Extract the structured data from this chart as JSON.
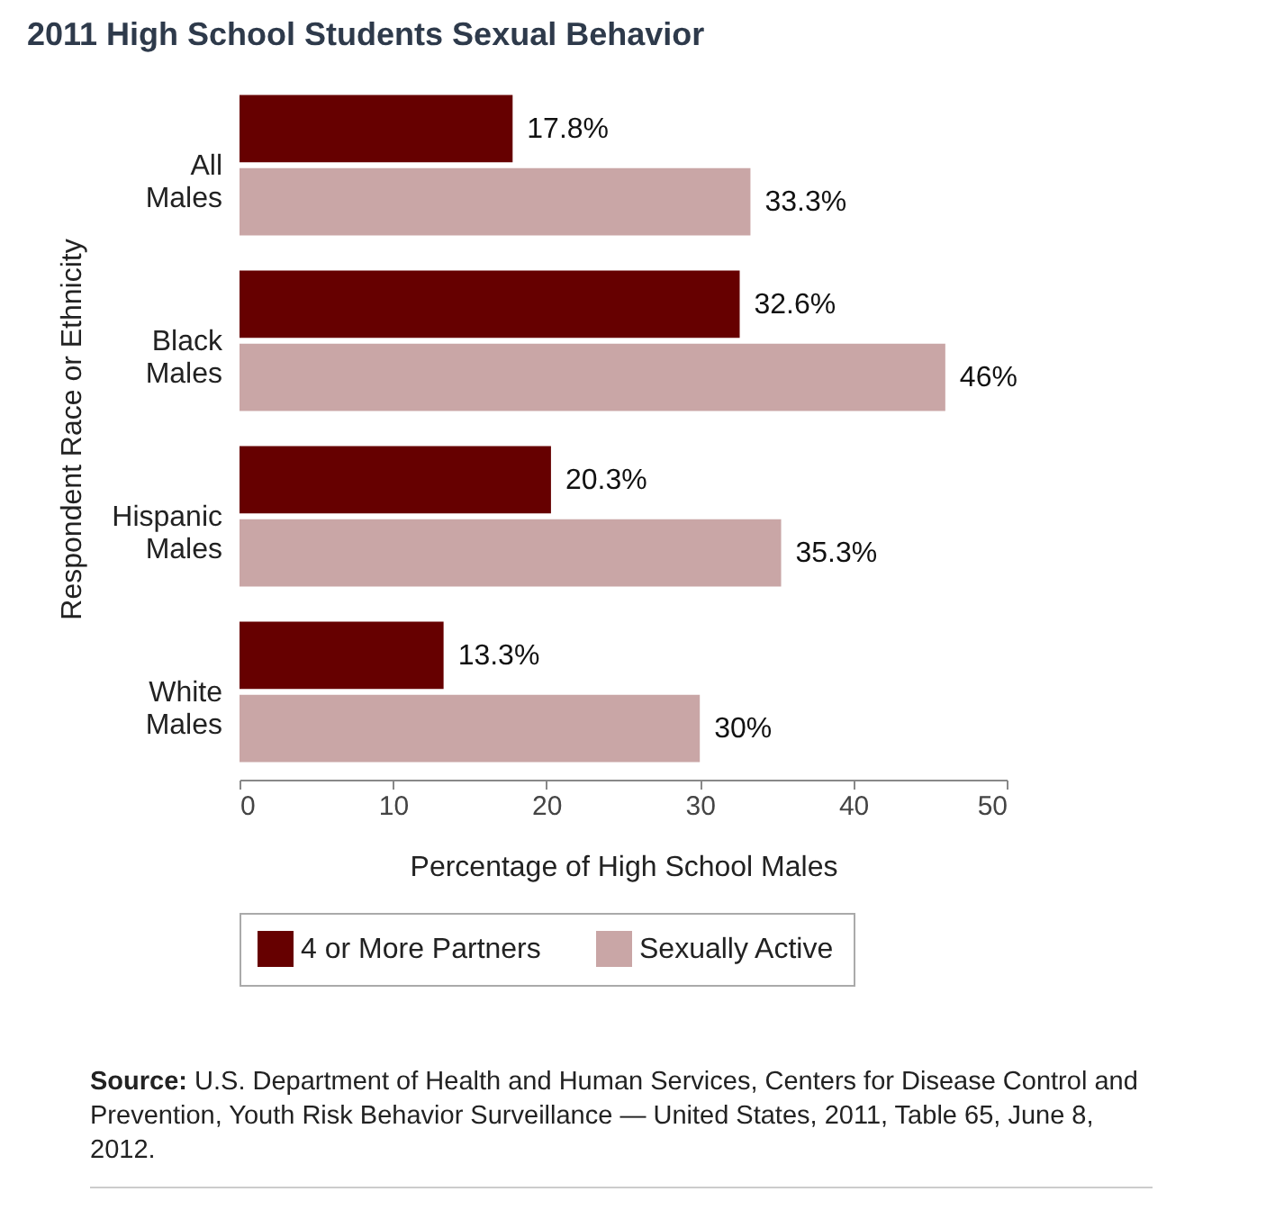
{
  "chart_data": {
    "type": "bar",
    "orientation": "horizontal",
    "title": "2011 High School Students Sexual Behavior",
    "xlabel": "Percentage of High School Males",
    "ylabel": "Respondent Race or Ethnicity",
    "categories": [
      "All Males",
      "Black Males",
      "Hispanic Males",
      "White Males"
    ],
    "series": [
      {
        "name": "4 or More Partners",
        "color": "#660000",
        "values": [
          17.8,
          32.6,
          20.3,
          13.3
        ],
        "value_labels": [
          "17.8%",
          "32.6%",
          "20.3%",
          "13.3%"
        ]
      },
      {
        "name": "Sexually Active",
        "color": "#c9a6a6",
        "values": [
          33.3,
          46,
          35.3,
          30
        ],
        "value_labels": [
          "33.3%",
          "46%",
          "35.3%",
          "30%"
        ]
      }
    ],
    "xlim": [
      0,
      50
    ],
    "xticks": [
      0,
      10,
      20,
      30,
      40,
      50
    ],
    "grid": false,
    "legend": "bottom",
    "annotations": [
      "Source: U.S. Department of Health and Human Services, Centers for Disease Control and Prevention, Youth Risk Behavior Surveillance — United States, 2011, Table 65, June 8, 2012."
    ]
  }
}
